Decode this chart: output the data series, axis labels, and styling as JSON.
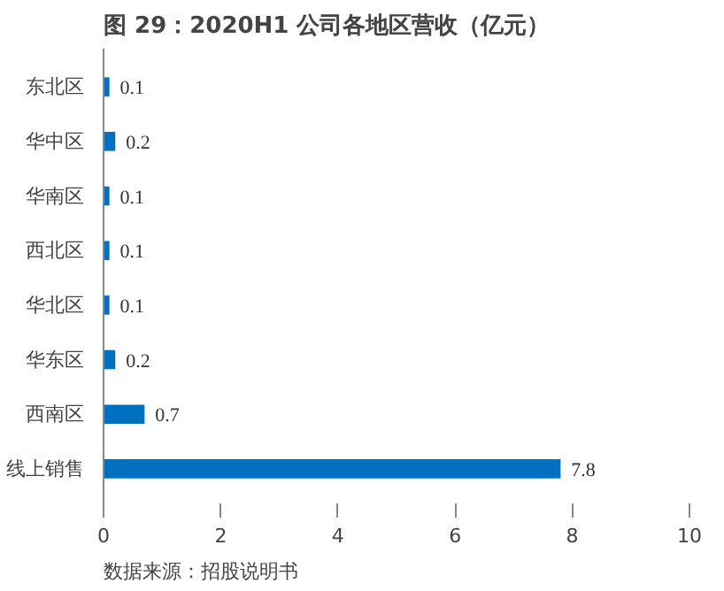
{
  "chart_data": {
    "type": "bar",
    "orientation": "horizontal",
    "title": "图 29：2020H1 公司各地区营收（亿元）",
    "categories": [
      "东北区",
      "华中区",
      "华南区",
      "西北区",
      "华北区",
      "华东区",
      "西南区",
      "线上销售"
    ],
    "values": [
      0.1,
      0.2,
      0.1,
      0.1,
      0.1,
      0.2,
      0.7,
      7.8
    ],
    "color": "#0070c0",
    "xlim": [
      0,
      10
    ],
    "xticks": [
      0,
      2,
      4,
      6,
      8,
      10
    ],
    "data_labels": true,
    "grid": false,
    "annotations": [
      "数据来源：招股说明书"
    ]
  }
}
